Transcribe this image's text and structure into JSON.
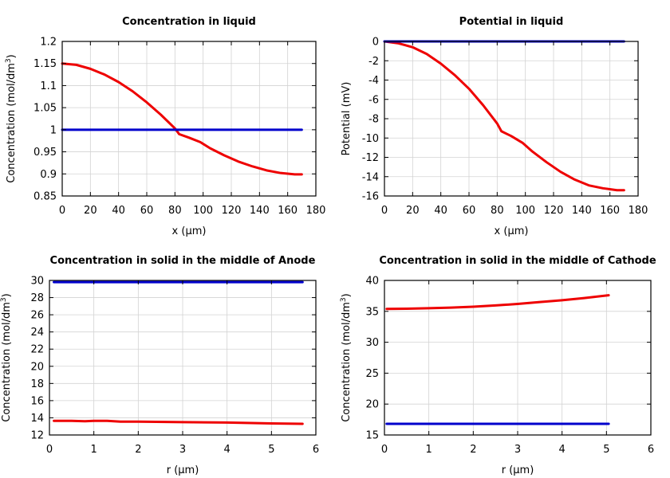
{
  "chart_data": [
    {
      "type": "line",
      "title": "Concentration in liquid",
      "xlabel": "x (µm)",
      "ylabel": "Concentration (mol/dm",
      "ylabel_sup": "3",
      "ylabel_end": ")",
      "xlim": [
        0,
        180
      ],
      "ylim": [
        0.85,
        1.2
      ],
      "xticks": [
        0,
        20,
        40,
        60,
        80,
        100,
        120,
        140,
        160,
        180
      ],
      "yticks": [
        0.85,
        0.9,
        0.95,
        1,
        1.05,
        1.1,
        1.15,
        1.2
      ],
      "ytick_labels": [
        "0.85",
        "0.9",
        "0.95",
        "1",
        "1.05",
        "1.1",
        "1.15",
        "1.2"
      ],
      "grid": true,
      "series": [
        {
          "color": "#ee0000",
          "x": [
            0,
            10,
            20,
            30,
            40,
            50,
            60,
            70,
            80,
            83,
            90,
            98,
            105,
            115,
            125,
            135,
            145,
            155,
            165,
            170
          ],
          "y": [
            1.15,
            1.147,
            1.138,
            1.125,
            1.108,
            1.087,
            1.062,
            1.034,
            1.003,
            0.99,
            0.982,
            0.972,
            0.958,
            0.942,
            0.928,
            0.917,
            0.908,
            0.902,
            0.899,
            0.899
          ]
        },
        {
          "color": "#0000cc",
          "x": [
            0,
            170
          ],
          "y": [
            1.0,
            1.0
          ]
        }
      ]
    },
    {
      "type": "line",
      "title": "Potential in liquid",
      "xlabel": "x (µm)",
      "ylabel": "Potential (mV)",
      "ylabel_sup": "",
      "ylabel_end": "",
      "xlim": [
        0,
        180
      ],
      "ylim": [
        -16,
        0
      ],
      "xticks": [
        0,
        20,
        40,
        60,
        80,
        100,
        120,
        140,
        160,
        180
      ],
      "yticks": [
        0,
        -2,
        -4,
        -6,
        -8,
        -10,
        -12,
        -14,
        -16
      ],
      "ytick_labels": [
        "0",
        "-2",
        "-4",
        "-6",
        "-8",
        "-10",
        "-12",
        "-14",
        "-16"
      ],
      "grid": true,
      "series": [
        {
          "color": "#ee0000",
          "x": [
            0,
            10,
            20,
            30,
            40,
            50,
            60,
            70,
            80,
            83,
            90,
            98,
            105,
            115,
            125,
            135,
            145,
            155,
            165,
            170
          ],
          "y": [
            0,
            -0.2,
            -0.6,
            -1.3,
            -2.3,
            -3.5,
            -4.9,
            -6.6,
            -8.5,
            -9.3,
            -9.8,
            -10.5,
            -11.4,
            -12.5,
            -13.5,
            -14.3,
            -14.9,
            -15.2,
            -15.4,
            -15.4
          ]
        },
        {
          "color": "#0000cc",
          "x": [
            0,
            170
          ],
          "y": [
            0,
            0
          ]
        }
      ]
    },
    {
      "type": "line",
      "title": "Concentration in solid in the middle of Anode",
      "xlabel": "r (µm)",
      "ylabel": "Concentration (mol/dm",
      "ylabel_sup": "3",
      "ylabel_end": ")",
      "xlim": [
        0,
        6
      ],
      "ylim": [
        12,
        30
      ],
      "xticks": [
        0,
        1,
        2,
        3,
        4,
        5,
        6
      ],
      "yticks": [
        12,
        14,
        16,
        18,
        20,
        22,
        24,
        26,
        28,
        30
      ],
      "ytick_labels": [
        "12",
        "14",
        "16",
        "18",
        "20",
        "22",
        "24",
        "26",
        "28",
        "30"
      ],
      "grid": true,
      "series": [
        {
          "color": "#ee0000",
          "x": [
            0.1,
            0.5,
            0.8,
            1.0,
            1.3,
            1.6,
            2.0,
            3.0,
            4.0,
            5.0,
            5.7
          ],
          "y": [
            13.65,
            13.65,
            13.6,
            13.65,
            13.65,
            13.55,
            13.55,
            13.5,
            13.45,
            13.35,
            13.3
          ]
        },
        {
          "color": "#0000cc",
          "x": [
            0.1,
            5.7
          ],
          "y": [
            29.8,
            29.8
          ]
        }
      ]
    },
    {
      "type": "line",
      "title": "Concentration in solid in the middle of Cathode",
      "xlabel": "r (µm)",
      "ylabel": "Concentration (mol/dm",
      "ylabel_sup": "3",
      "ylabel_end": ")",
      "xlim": [
        0,
        6
      ],
      "ylim": [
        15,
        40
      ],
      "xticks": [
        0,
        1,
        2,
        3,
        4,
        5,
        6
      ],
      "yticks": [
        15,
        20,
        25,
        30,
        35,
        40
      ],
      "ytick_labels": [
        "15",
        "20",
        "25",
        "30",
        "35",
        "40"
      ],
      "grid": true,
      "series": [
        {
          "color": "#ee0000",
          "x": [
            0.05,
            0.5,
            1.0,
            1.5,
            2.0,
            2.5,
            3.0,
            3.5,
            4.0,
            4.5,
            5.05
          ],
          "y": [
            35.4,
            35.42,
            35.5,
            35.6,
            35.75,
            35.95,
            36.2,
            36.5,
            36.8,
            37.15,
            37.6
          ]
        },
        {
          "color": "#0000cc",
          "x": [
            0.05,
            5.05
          ],
          "y": [
            16.8,
            16.8
          ]
        }
      ]
    }
  ]
}
